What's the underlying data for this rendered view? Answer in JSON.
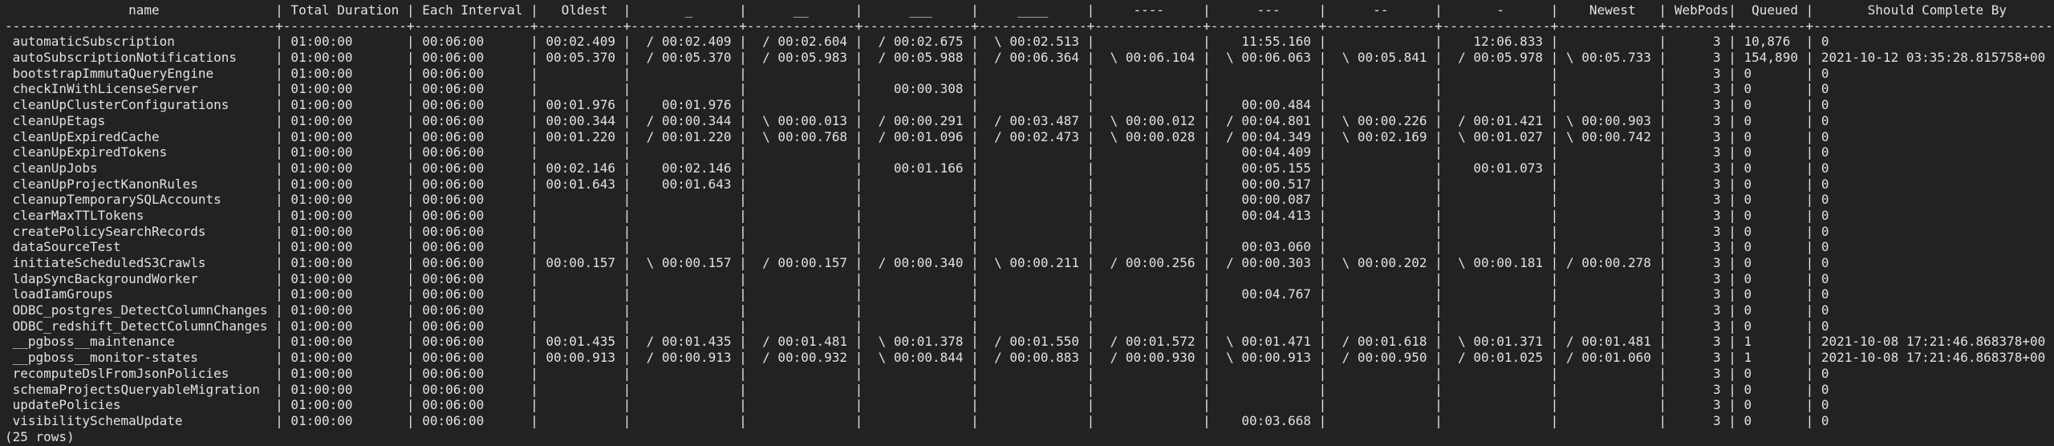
{
  "terminal": {
    "background_color": "#212224",
    "text_color": "#e2e2df"
  },
  "table": {
    "columns": [
      {
        "label": "name"
      },
      {
        "label": "Total Duration"
      },
      {
        "label": "Each Interval"
      },
      {
        "label": "Oldest"
      },
      {
        "label": "_"
      },
      {
        "label": "__"
      },
      {
        "label": "___"
      },
      {
        "label": "____"
      },
      {
        "label": "----"
      },
      {
        "label": "---"
      },
      {
        "label": "--"
      },
      {
        "label": "-"
      },
      {
        "label": "Newest"
      },
      {
        "label": "WebPods"
      },
      {
        "label": "Queued"
      },
      {
        "label": "Should Complete By"
      }
    ],
    "rows": [
      [
        "automaticSubscription",
        "01:00:00",
        "00:06:00",
        "00:02.409",
        "/ 00:02.409",
        "/ 00:02.604",
        "/ 00:02.675",
        "\\ 00:02.513",
        "",
        "11:55.160",
        "",
        "12:06.833",
        "",
        "3",
        "10,876",
        "0"
      ],
      [
        "autoSubscriptionNotifications",
        "01:00:00",
        "00:06:00",
        "00:05.370",
        "/ 00:05.370",
        "/ 00:05.983",
        "/ 00:05.988",
        "/ 00:06.364",
        "\\ 00:06.104",
        "\\ 00:06.063",
        "\\ 00:05.841",
        "/ 00:05.978",
        "\\ 00:05.733",
        "3",
        "154,890",
        "2021-10-12 03:35:28.815758+00"
      ],
      [
        "bootstrapImmutaQueryEngine",
        "01:00:00",
        "00:06:00",
        "",
        "",
        "",
        "",
        "",
        "",
        "",
        "",
        "",
        "",
        "3",
        "0",
        "0"
      ],
      [
        "checkInWithLicenseServer",
        "01:00:00",
        "00:06:00",
        "",
        "",
        "",
        "00:00.308",
        "",
        "",
        "",
        "",
        "",
        "",
        "3",
        "0",
        "0"
      ],
      [
        "cleanUpClusterConfigurations",
        "01:00:00",
        "00:06:00",
        "00:01.976",
        "00:01.976",
        "",
        "",
        "",
        "",
        "00:00.484",
        "",
        "",
        "",
        "3",
        "0",
        "0"
      ],
      [
        "cleanUpEtags",
        "01:00:00",
        "00:06:00",
        "00:00.344",
        "/ 00:00.344",
        "\\ 00:00.013",
        "/ 00:00.291",
        "/ 00:03.487",
        "\\ 00:00.012",
        "/ 00:04.801",
        "\\ 00:00.226",
        "/ 00:01.421",
        "\\ 00:00.903",
        "3",
        "0",
        "0"
      ],
      [
        "cleanUpExpiredCache",
        "01:00:00",
        "00:06:00",
        "00:01.220",
        "/ 00:01.220",
        "\\ 00:00.768",
        "/ 00:01.096",
        "/ 00:02.473",
        "\\ 00:00.028",
        "/ 00:04.349",
        "\\ 00:02.169",
        "\\ 00:01.027",
        "\\ 00:00.742",
        "3",
        "0",
        "0"
      ],
      [
        "cleanUpExpiredTokens",
        "01:00:00",
        "00:06:00",
        "",
        "",
        "",
        "",
        "",
        "",
        "00:04.409",
        "",
        "",
        "",
        "3",
        "0",
        "0"
      ],
      [
        "cleanUpJobs",
        "01:00:00",
        "00:06:00",
        "00:02.146",
        "00:02.146",
        "",
        "00:01.166",
        "",
        "",
        "00:05.155",
        "",
        "00:01.073",
        "",
        "3",
        "0",
        "0"
      ],
      [
        "cleanUpProjectKanonRules",
        "01:00:00",
        "00:06:00",
        "00:01.643",
        "00:01.643",
        "",
        "",
        "",
        "",
        "00:00.517",
        "",
        "",
        "",
        "3",
        "0",
        "0"
      ],
      [
        "cleanupTemporarySQLAccounts",
        "01:00:00",
        "00:06:00",
        "",
        "",
        "",
        "",
        "",
        "",
        "00:00.087",
        "",
        "",
        "",
        "3",
        "0",
        "0"
      ],
      [
        "clearMaxTTLTokens",
        "01:00:00",
        "00:06:00",
        "",
        "",
        "",
        "",
        "",
        "",
        "00:04.413",
        "",
        "",
        "",
        "3",
        "0",
        "0"
      ],
      [
        "createPolicySearchRecords",
        "01:00:00",
        "00:06:00",
        "",
        "",
        "",
        "",
        "",
        "",
        "",
        "",
        "",
        "",
        "3",
        "0",
        "0"
      ],
      [
        "dataSourceTest",
        "01:00:00",
        "00:06:00",
        "",
        "",
        "",
        "",
        "",
        "",
        "00:03.060",
        "",
        "",
        "",
        "3",
        "0",
        "0"
      ],
      [
        "initiateScheduledS3Crawls",
        "01:00:00",
        "00:06:00",
        "00:00.157",
        "\\ 00:00.157",
        "/ 00:00.157",
        "/ 00:00.340",
        "\\ 00:00.211",
        "/ 00:00.256",
        "/ 00:00.303",
        "\\ 00:00.202",
        "\\ 00:00.181",
        "/ 00:00.278",
        "3",
        "0",
        "0"
      ],
      [
        "ldapSyncBackgroundWorker",
        "01:00:00",
        "00:06:00",
        "",
        "",
        "",
        "",
        "",
        "",
        "",
        "",
        "",
        "",
        "3",
        "0",
        "0"
      ],
      [
        "loadIamGroups",
        "01:00:00",
        "00:06:00",
        "",
        "",
        "",
        "",
        "",
        "",
        "00:04.767",
        "",
        "",
        "",
        "3",
        "0",
        "0"
      ],
      [
        "ODBC_postgres_DetectColumnChanges",
        "01:00:00",
        "00:06:00",
        "",
        "",
        "",
        "",
        "",
        "",
        "",
        "",
        "",
        "",
        "3",
        "0",
        "0"
      ],
      [
        "ODBC_redshift_DetectColumnChanges",
        "01:00:00",
        "00:06:00",
        "",
        "",
        "",
        "",
        "",
        "",
        "",
        "",
        "",
        "",
        "3",
        "0",
        "0"
      ],
      [
        "__pgboss__maintenance",
        "01:00:00",
        "00:06:00",
        "00:01.435",
        "/ 00:01.435",
        "/ 00:01.481",
        "\\ 00:01.378",
        "/ 00:01.550",
        "/ 00:01.572",
        "\\ 00:01.471",
        "/ 00:01.618",
        "\\ 00:01.371",
        "/ 00:01.481",
        "3",
        "1",
        "2021-10-08 17:21:46.868378+00"
      ],
      [
        "__pgboss__monitor-states",
        "01:00:00",
        "00:06:00",
        "00:00.913",
        "/ 00:00.913",
        "/ 00:00.932",
        "\\ 00:00.844",
        "/ 00:00.883",
        "/ 00:00.930",
        "\\ 00:00.913",
        "/ 00:00.950",
        "/ 00:01.025",
        "/ 00:01.060",
        "3",
        "1",
        "2021-10-08 17:21:46.868378+00"
      ],
      [
        "recomputeDslFromJsonPolicies",
        "01:00:00",
        "00:06:00",
        "",
        "",
        "",
        "",
        "",
        "",
        "",
        "",
        "",
        "",
        "3",
        "0",
        "0"
      ],
      [
        "schemaProjectsQueryableMigration",
        "01:00:00",
        "00:06:00",
        "",
        "",
        "",
        "",
        "",
        "",
        "",
        "",
        "",
        "",
        "3",
        "0",
        "0"
      ],
      [
        "updatePolicies",
        "01:00:00",
        "00:06:00",
        "",
        "",
        "",
        "",
        "",
        "",
        "",
        "",
        "",
        "",
        "3",
        "0",
        "0"
      ],
      [
        "visibilitySchemaUpdate",
        "01:00:00",
        "00:06:00",
        "",
        "",
        "",
        "",
        "",
        "",
        "00:03.668",
        "",
        "",
        "",
        "3",
        "0",
        "0"
      ]
    ]
  },
  "footer": {
    "row_count": "(25 rows)"
  }
}
